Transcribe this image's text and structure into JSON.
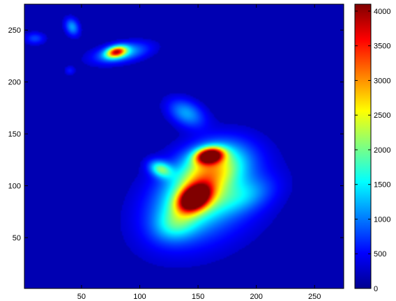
{
  "chart_data": {
    "type": "heatmap",
    "title": "",
    "xlabel": "",
    "ylabel": "",
    "xlim": [
      1,
      275
    ],
    "ylim": [
      1,
      275
    ],
    "x_ticks": [
      50,
      100,
      150,
      200,
      250
    ],
    "y_ticks": [
      50,
      100,
      150,
      200,
      250
    ],
    "colorbar": {
      "colormap": "jet",
      "range": [
        0,
        4100
      ],
      "ticks": [
        0,
        500,
        1000,
        1500,
        2000,
        2500,
        3000,
        3500,
        4000
      ]
    },
    "background_value": 0,
    "features": [
      {
        "name": "summit-lower",
        "x": 147,
        "y": 88,
        "peak": 4100
      },
      {
        "name": "summit-upper",
        "x": 160,
        "y": 129,
        "peak": 4000
      },
      {
        "name": "ridge-west",
        "x": 118,
        "y": 116,
        "peak": 1600
      },
      {
        "name": "north-lobe",
        "x": 140,
        "y": 170,
        "peak": 1000
      },
      {
        "name": "island-nw",
        "x": 80,
        "y": 229,
        "peak": 2800
      },
      {
        "name": "islet-a",
        "x": 42,
        "y": 253,
        "peak": 1000
      },
      {
        "name": "islet-b",
        "x": 10,
        "y": 242,
        "peak": 600
      },
      {
        "name": "islet-c",
        "x": 40,
        "y": 211,
        "peak": 400
      }
    ]
  }
}
